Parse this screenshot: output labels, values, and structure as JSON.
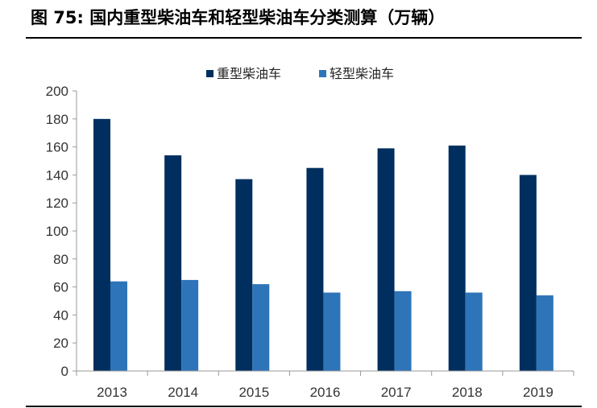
{
  "figure": {
    "title": "图 75:  国内重型柴油车和轻型柴油车分类测算（万辆）"
  },
  "colors": {
    "heavy": "#002f5f",
    "light": "#2e74b8",
    "axis": "#999999",
    "text": "#333333"
  },
  "chart_data": {
    "type": "bar",
    "title": "图 75:  国内重型柴油车和轻型柴油车分类测算（万辆）",
    "xlabel": "",
    "ylabel": "",
    "categories": [
      "2013",
      "2014",
      "2015",
      "2016",
      "2017",
      "2018",
      "2019"
    ],
    "series": [
      {
        "name": "重型柴油车",
        "values": [
          180,
          154,
          137,
          145,
          159,
          161,
          140
        ]
      },
      {
        "name": "轻型柴油车",
        "values": [
          64,
          65,
          62,
          56,
          57,
          56,
          54
        ]
      }
    ],
    "ylim": [
      0,
      200
    ],
    "yticks": [
      0,
      20,
      40,
      60,
      80,
      100,
      120,
      140,
      160,
      180,
      200
    ],
    "grid": false,
    "legend_position": "top-center"
  }
}
